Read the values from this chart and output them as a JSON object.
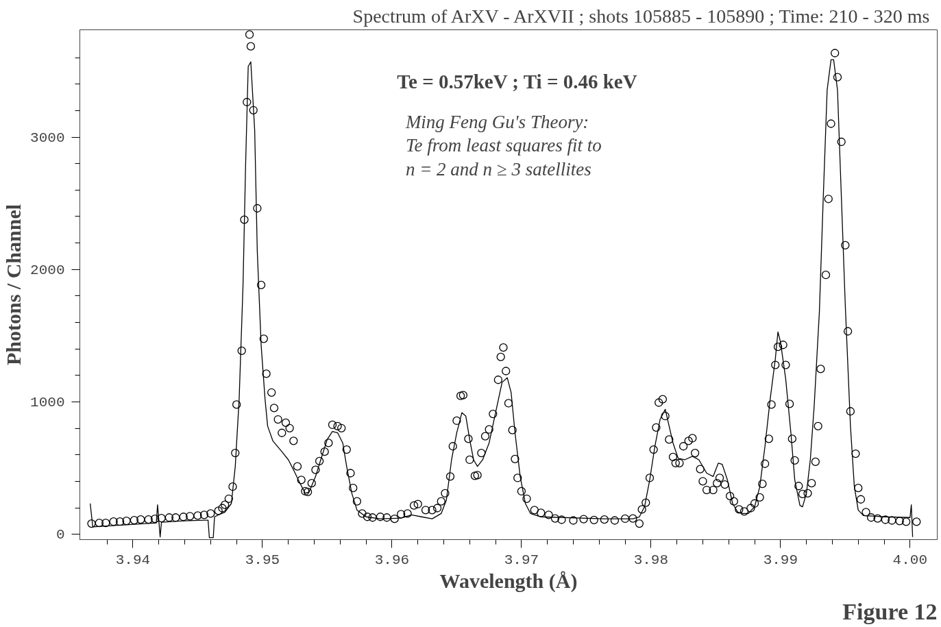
{
  "chart_data": {
    "type": "scatter",
    "title": "Spectrum of ArXV - ArXVII  ; shots 105885 - 105890 ; Time: 210 - 320 ms",
    "xlabel": "Wavelength (Å)",
    "ylabel": "Photons / Channel",
    "annotations": [
      "Te = 0.57keV ; Ti = 0.46 keV",
      "Ming Feng Gu's Theory:\nTe from least squares fit to\nn = 2 and n ≥ 3 satellites",
      "Figure 12"
    ],
    "xlim": [
      3.9359,
      4.0021
    ],
    "ylim": [
      -40,
      3810
    ],
    "xticks": [
      {
        "value": 3.938,
        "label": null
      },
      3.94,
      {
        "value": 3.942,
        "label": null
      },
      {
        "value": 3.944,
        "label": null
      },
      {
        "value": 3.946,
        "label": null
      },
      {
        "value": 3.948,
        "label": null
      },
      3.95,
      {
        "value": 3.952,
        "label": null
      },
      {
        "value": 3.954,
        "label": null
      },
      {
        "value": 3.956,
        "label": null
      },
      {
        "value": 3.958,
        "label": null
      },
      3.96,
      {
        "value": 3.962,
        "label": null
      },
      {
        "value": 3.964,
        "label": null
      },
      {
        "value": 3.966,
        "label": null
      },
      {
        "value": 3.968,
        "label": null
      },
      3.97,
      {
        "value": 3.972,
        "label": null
      },
      {
        "value": 3.974,
        "label": null
      },
      {
        "value": 3.976,
        "label": null
      },
      {
        "value": 3.978,
        "label": null
      },
      3.98,
      {
        "value": 3.982,
        "label": null
      },
      {
        "value": 3.984,
        "label": null
      },
      {
        "value": 3.986,
        "label": null
      },
      {
        "value": 3.988,
        "label": null
      },
      3.99,
      {
        "value": 3.992,
        "label": null
      },
      {
        "value": 3.994,
        "label": null
      },
      {
        "value": 3.996,
        "label": null
      },
      {
        "value": 3.998,
        "label": null
      },
      {
        "value": 4.0,
        "label": "4.00"
      }
    ],
    "yticks": [
      0,
      {
        "value": 200,
        "label": null
      },
      {
        "value": 400,
        "label": null
      },
      {
        "value": 600,
        "label": null
      },
      {
        "value": 800,
        "label": null
      },
      1000,
      {
        "value": 1200,
        "label": null
      },
      {
        "value": 1400,
        "label": null
      },
      {
        "value": 1600,
        "label": null
      },
      {
        "value": 1800,
        "label": null
      },
      2000,
      {
        "value": 2200,
        "label": null
      },
      {
        "value": 2400,
        "label": null
      },
      {
        "value": 2600,
        "label": null
      },
      {
        "value": 2800,
        "label": null
      },
      3000,
      {
        "value": 3200,
        "label": null
      },
      {
        "value": 3400,
        "label": null
      },
      {
        "value": 3600,
        "label": null
      }
    ],
    "grid": false,
    "series": [
      {
        "type": "scatter",
        "marker": "circle",
        "color": "#000000",
        "x": [
          3.9368,
          3.9374,
          3.9379,
          3.9385,
          3.939,
          3.9395,
          3.9401,
          3.9406,
          3.9412,
          3.9417,
          3.9422,
          3.9428,
          3.9433,
          3.9439,
          3.9444,
          3.945,
          3.9455,
          3.946,
          3.9466,
          3.9469,
          3.9471,
          3.9474,
          3.9477,
          3.9479,
          3.948,
          3.9484,
          3.9486,
          3.9488,
          3.949,
          3.9491,
          3.9493,
          3.9496,
          3.9499,
          3.9501,
          3.9503,
          3.9507,
          3.9509,
          3.9512,
          3.9515,
          3.9518,
          3.9521,
          3.9524,
          3.9527,
          3.953,
          3.9533,
          3.9535,
          3.9538,
          3.9541,
          3.9544,
          3.9548,
          3.9551,
          3.9554,
          3.9558,
          3.9561,
          3.9565,
          3.9568,
          3.957,
          3.9573,
          3.9577,
          3.9581,
          3.9585,
          3.9591,
          3.9596,
          3.9602,
          3.9607,
          3.9612,
          3.9617,
          3.962,
          3.9626,
          3.9631,
          3.9635,
          3.9638,
          3.9641,
          3.9645,
          3.9647,
          3.965,
          3.9653,
          3.9655,
          3.9659,
          3.966,
          3.9664,
          3.9666,
          3.9669,
          3.9672,
          3.9675,
          3.9678,
          3.9682,
          3.9684,
          3.9686,
          3.9688,
          3.969,
          3.9693,
          3.9695,
          3.9697,
          3.97,
          3.9704,
          3.971,
          3.9715,
          3.9721,
          3.9726,
          3.9731,
          3.974,
          3.9748,
          3.9756,
          3.9764,
          3.9772,
          3.978,
          3.9786,
          3.9791,
          3.9793,
          3.9796,
          3.9799,
          3.9802,
          3.9804,
          3.9806,
          3.9809,
          3.9811,
          3.9814,
          3.9817,
          3.9819,
          3.9822,
          3.9825,
          3.9829,
          3.9832,
          3.9834,
          3.9838,
          3.984,
          3.9843,
          3.9848,
          3.9851,
          3.9853,
          3.9857,
          3.9861,
          3.9864,
          3.9868,
          3.9872,
          3.9877,
          3.988,
          3.9884,
          3.9886,
          3.9888,
          3.9891,
          3.9893,
          3.9896,
          3.9898,
          3.9902,
          3.9904,
          3.9907,
          3.9909,
          3.9911,
          3.9914,
          3.9917,
          3.9921,
          3.9924,
          3.9927,
          3.9929,
          3.9931,
          3.9935,
          3.9937,
          3.9939,
          3.9942,
          3.9944,
          3.9947,
          3.995,
          3.9952,
          3.9954,
          3.9958,
          3.996,
          3.9962,
          3.9966,
          3.997,
          3.9975,
          3.9981,
          3.9986,
          3.9992,
          3.9997,
          4.0005
        ],
        "values": [
          81,
          86,
          86,
          96,
          96,
          102,
          107,
          112,
          112,
          117,
          122,
          127,
          127,
          132,
          137,
          142,
          147,
          157,
          178,
          198,
          223,
          269,
          360,
          614,
          980,
          1386,
          2376,
          3264,
          3774,
          3685,
          3203,
          2462,
          1883,
          1477,
          1213,
          1071,
          954,
          868,
          766,
          843,
          802,
          706,
          513,
          411,
          325,
          320,
          386,
          487,
          553,
          624,
          690,
          827,
          817,
          802,
          640,
          462,
          350,
          249,
          157,
          132,
          127,
          132,
          127,
          117,
          152,
          157,
          218,
          228,
          183,
          183,
          198,
          249,
          310,
          437,
          665,
          858,
          1046,
          1051,
          721,
          563,
          442,
          447,
          614,
          741,
          792,
          909,
          1167,
          1340,
          1411,
          1233,
          990,
          787,
          569,
          426,
          325,
          269,
          183,
          162,
          147,
          120,
          110,
          105,
          115,
          108,
          112,
          105,
          118,
          120,
          81,
          188,
          239,
          426,
          640,
          807,
          995,
          1020,
          893,
          716,
          584,
          538,
          538,
          665,
          706,
          726,
          614,
          492,
          401,
          335,
          335,
          386,
          426,
          376,
          289,
          249,
          188,
          173,
          198,
          233,
          279,
          381,
          533,
          721,
          980,
          1279,
          1416,
          1431,
          1279,
          985,
          721,
          558,
          365,
          305,
          310,
          386,
          548,
          817,
          1249,
          1959,
          2533,
          3101,
          3634,
          3452,
          2964,
          2183,
          1533,
          929,
          609,
          350,
          264,
          168,
          127,
          120,
          110,
          105,
          100,
          95,
          95
        ]
      },
      {
        "type": "line",
        "line_style": "solid",
        "color": "#000000",
        "x": [
          3.9367,
          3.9369,
          3.9401,
          3.9418,
          3.9419,
          3.9421,
          3.9422,
          3.9439,
          3.9455,
          3.9458,
          3.9459,
          3.9462,
          3.9463,
          3.9466,
          3.9471,
          3.9476,
          3.9479,
          3.9482,
          3.9485,
          3.9487,
          3.9489,
          3.9491,
          3.9494,
          3.9496,
          3.9499,
          3.9502,
          3.9504,
          3.9508,
          3.9515,
          3.952,
          3.9524,
          3.9529,
          3.9533,
          3.9536,
          3.9541,
          3.9545,
          3.955,
          3.9554,
          3.9558,
          3.9562,
          3.9565,
          3.9569,
          3.9573,
          3.958,
          3.9591,
          3.9607,
          3.9615,
          3.9623,
          3.9631,
          3.9638,
          3.9642,
          3.9646,
          3.965,
          3.9654,
          3.9657,
          3.966,
          3.9663,
          3.9666,
          3.967,
          3.9675,
          3.968,
          3.9685,
          3.9689,
          3.9692,
          3.9695,
          3.9699,
          3.9703,
          3.9707,
          3.9715,
          3.9764,
          3.9786,
          3.9791,
          3.9795,
          3.9799,
          3.9803,
          3.9807,
          3.9811,
          3.9814,
          3.9817,
          3.9821,
          3.9826,
          3.9832,
          3.9837,
          3.9843,
          3.9848,
          3.9852,
          3.9855,
          3.9859,
          3.9863,
          3.9867,
          3.9871,
          3.9875,
          3.988,
          3.9884,
          3.9888,
          3.9892,
          3.9896,
          3.9898,
          3.99,
          3.9904,
          3.9908,
          3.9911,
          3.9915,
          3.9917,
          3.992,
          3.9923,
          3.9926,
          3.993,
          3.9933,
          3.9936,
          3.9939,
          3.9941,
          3.9944,
          3.9947,
          3.995,
          3.9954,
          3.9957,
          3.996,
          3.9964,
          3.9981,
          4.0,
          4.0001,
          4.0002
        ],
        "values": [
          233,
          56,
          76,
          86,
          223,
          -20,
          91,
          102,
          107,
          107,
          -25,
          -25,
          132,
          147,
          168,
          233,
          513,
          1020,
          1883,
          2797,
          3533,
          3568,
          3051,
          2137,
          1426,
          1020,
          817,
          706,
          624,
          563,
          487,
          386,
          310,
          320,
          437,
          563,
          716,
          777,
          767,
          690,
          513,
          310,
          183,
          132,
          117,
          122,
          147,
          132,
          117,
          157,
          259,
          563,
          767,
          919,
          893,
          716,
          563,
          513,
          563,
          690,
          919,
          1147,
          1183,
          1071,
          767,
          437,
          233,
          157,
          132,
          117,
          117,
          132,
          208,
          411,
          665,
          868,
          944,
          817,
          690,
          574,
          563,
          589,
          563,
          462,
          437,
          538,
          528,
          411,
          233,
          168,
          157,
          157,
          208,
          360,
          665,
          1020,
          1325,
          1528,
          1452,
          1173,
          767,
          411,
          218,
          208,
          310,
          563,
          970,
          1680,
          2543,
          3355,
          3584,
          3584,
          3355,
          2543,
          1731,
          817,
          360,
          183,
          142,
          132,
          127,
          223,
          -20
        ]
      }
    ]
  }
}
